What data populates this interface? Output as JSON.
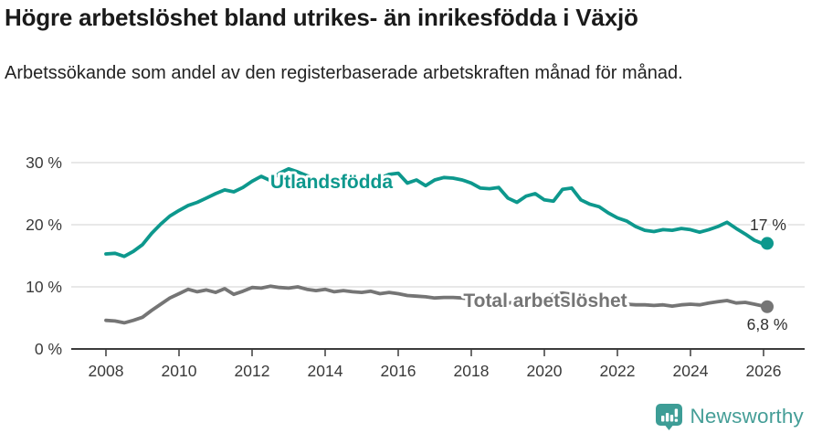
{
  "header": {
    "title": "Högre arbetslöshet bland utrikes- än inrikesfödda i Växjö",
    "subtitle": "Arbetssökande som andel av den registerbaserade arbetskraften månad för månad."
  },
  "chart_data": {
    "type": "line",
    "title": "Högre arbetslöshet bland utrikes- än inrikesfödda i Växjö",
    "xlabel": "",
    "ylabel": "Arbetssökande som andel av den registerbaserade arbetskraften (%)",
    "grid": true,
    "legend_position": "inline-labels-on-lines",
    "xlim": [
      2007.0,
      2027.1
    ],
    "ylim": [
      0,
      32
    ],
    "xticks": [
      2008,
      2010,
      2012,
      2014,
      2016,
      2018,
      2020,
      2022,
      2024,
      2026
    ],
    "yticks": [
      0,
      10,
      20,
      30
    ],
    "ytick_labels": [
      "0 %",
      "10 %",
      "20 %",
      "30 %"
    ],
    "x": [
      2008,
      2008.25,
      2008.5,
      2008.75,
      2009,
      2009.25,
      2009.5,
      2009.75,
      2010,
      2010.25,
      2010.5,
      2010.75,
      2011,
      2011.25,
      2011.5,
      2011.75,
      2012,
      2012.25,
      2012.5,
      2012.75,
      2013,
      2013.25,
      2013.5,
      2013.75,
      2014,
      2014.25,
      2014.5,
      2014.75,
      2015,
      2015.25,
      2015.5,
      2015.75,
      2016,
      2016.25,
      2016.5,
      2016.75,
      2017,
      2017.25,
      2017.5,
      2017.75,
      2018,
      2018.25,
      2018.5,
      2018.75,
      2019,
      2019.25,
      2019.5,
      2019.75,
      2020,
      2020.25,
      2020.5,
      2020.75,
      2021,
      2021.25,
      2021.5,
      2021.75,
      2022,
      2022.25,
      2022.5,
      2022.75,
      2023,
      2023.25,
      2023.5,
      2023.75,
      2024,
      2024.25,
      2024.5,
      2024.75,
      2025,
      2025.25,
      2025.5,
      2025.75,
      2026,
      2026.1
    ],
    "series": [
      {
        "name": "Utlandsfödda",
        "color": "#0d988d",
        "end_label": "17 %",
        "end_value": 17.0,
        "values": [
          15.3,
          15.4,
          14.9,
          15.7,
          16.8,
          18.6,
          20.1,
          21.4,
          22.3,
          23.1,
          23.6,
          24.3,
          25.0,
          25.6,
          25.3,
          26.0,
          27.0,
          27.8,
          27.1,
          28.3,
          29.0,
          28.5,
          27.9,
          27.4,
          27.1,
          26.7,
          26.4,
          26.6,
          26.9,
          27.1,
          27.5,
          28.1,
          28.3,
          26.7,
          27.2,
          26.3,
          27.2,
          27.6,
          27.5,
          27.2,
          26.7,
          25.9,
          25.8,
          26.0,
          24.3,
          23.6,
          24.6,
          25.0,
          24.0,
          23.8,
          25.7,
          25.9,
          24.0,
          23.3,
          22.9,
          21.9,
          21.1,
          20.6,
          19.7,
          19.1,
          18.9,
          19.2,
          19.1,
          19.4,
          19.2,
          18.8,
          19.2,
          19.7,
          20.4,
          19.4,
          18.5,
          17.5,
          16.9,
          17.0
        ]
      },
      {
        "name": "Total arbetslöshet",
        "color": "#757575",
        "end_label": "6,8 %",
        "end_value": 6.8,
        "values": [
          4.6,
          4.5,
          4.2,
          4.6,
          5.1,
          6.2,
          7.2,
          8.2,
          8.9,
          9.6,
          9.2,
          9.5,
          9.1,
          9.7,
          8.8,
          9.3,
          9.9,
          9.8,
          10.1,
          9.9,
          9.8,
          10.0,
          9.6,
          9.4,
          9.6,
          9.2,
          9.4,
          9.2,
          9.1,
          9.3,
          8.9,
          9.1,
          8.9,
          8.6,
          8.5,
          8.4,
          8.2,
          8.3,
          8.3,
          8.2,
          8.0,
          7.8,
          7.9,
          7.6,
          7.4,
          7.5,
          7.7,
          7.6,
          7.8,
          8.8,
          9.0,
          8.8,
          8.5,
          8.2,
          7.8,
          7.5,
          7.3,
          7.2,
          7.1,
          7.1,
          7.0,
          7.1,
          6.9,
          7.1,
          7.2,
          7.1,
          7.4,
          7.6,
          7.8,
          7.4,
          7.5,
          7.2,
          6.9,
          6.8
        ]
      }
    ]
  },
  "footer": {
    "brand": "Newsworthy",
    "brand_color": "#459e97",
    "brand_icon": "newsworthy-chart-pin-icon"
  }
}
